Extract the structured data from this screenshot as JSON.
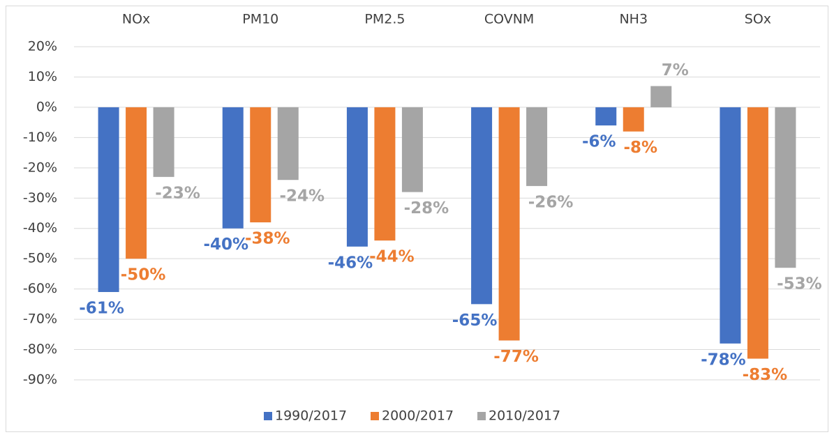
{
  "chart_data": {
    "type": "bar",
    "categories": [
      "NOx",
      "PM10",
      "PM2.5",
      "COVNM",
      "NH3",
      "SOx"
    ],
    "series": [
      {
        "name": "1990/2017",
        "color": "#4472c4",
        "values": [
          -61,
          -40,
          -46,
          -65,
          -6,
          -78
        ],
        "value_labels": [
          "-61%",
          "-40%",
          "-46%",
          "-65%",
          "-6%",
          "-78%"
        ]
      },
      {
        "name": "2000/2017",
        "color": "#ed7d31",
        "values": [
          -50,
          -38,
          -44,
          -77,
          -8,
          -83
        ],
        "value_labels": [
          "-50%",
          "-38%",
          "-44%",
          "-77%",
          "-8%",
          "-83%"
        ]
      },
      {
        "name": "2010/2017",
        "color": "#a5a5a5",
        "values": [
          -23,
          -24,
          -28,
          -26,
          7,
          -53
        ],
        "value_labels": [
          "-23%",
          "-24%",
          "-28%",
          "-26%",
          "7%",
          "-53%"
        ]
      }
    ],
    "ylim": [
      -90,
      20
    ],
    "yticks": [
      {
        "value": 20,
        "label": "20%"
      },
      {
        "value": 10,
        "label": "10%"
      },
      {
        "value": 0,
        "label": "0%"
      },
      {
        "value": -10,
        "label": "-10%"
      },
      {
        "value": -20,
        "label": "-20%"
      },
      {
        "value": -30,
        "label": "-30%"
      },
      {
        "value": -40,
        "label": "-40%"
      },
      {
        "value": -50,
        "label": "-50%"
      },
      {
        "value": -60,
        "label": "-60%"
      },
      {
        "value": -70,
        "label": "-70%"
      },
      {
        "value": -80,
        "label": "-80%"
      },
      {
        "value": -90,
        "label": "-90%"
      }
    ],
    "grid": true,
    "legend": "bottom"
  }
}
